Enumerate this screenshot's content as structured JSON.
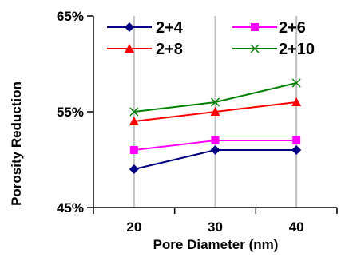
{
  "chart_data": {
    "type": "line",
    "x": [
      20,
      30,
      40
    ],
    "x_tick_labels": [
      "20",
      "30",
      "40"
    ],
    "y_tick_labels": [
      "45%",
      "55%",
      "65%"
    ],
    "ylim": [
      45,
      65
    ],
    "xlabel": "Pore Diameter (nm)",
    "ylabel": "Porosity Reduction",
    "grid": "vertical",
    "legend_position": "top",
    "series": [
      {
        "name": "2+4",
        "values": [
          49,
          51,
          51
        ],
        "color": "#000080",
        "marker": "diamond"
      },
      {
        "name": "2+6",
        "values": [
          51,
          52,
          52
        ],
        "color": "#ff00ff",
        "marker": "square"
      },
      {
        "name": "2+8",
        "values": [
          54,
          55,
          56
        ],
        "color": "#ff0000",
        "marker": "triangle"
      },
      {
        "name": "2+10",
        "values": [
          55,
          56,
          58
        ],
        "color": "#008000",
        "marker": "x"
      }
    ]
  }
}
